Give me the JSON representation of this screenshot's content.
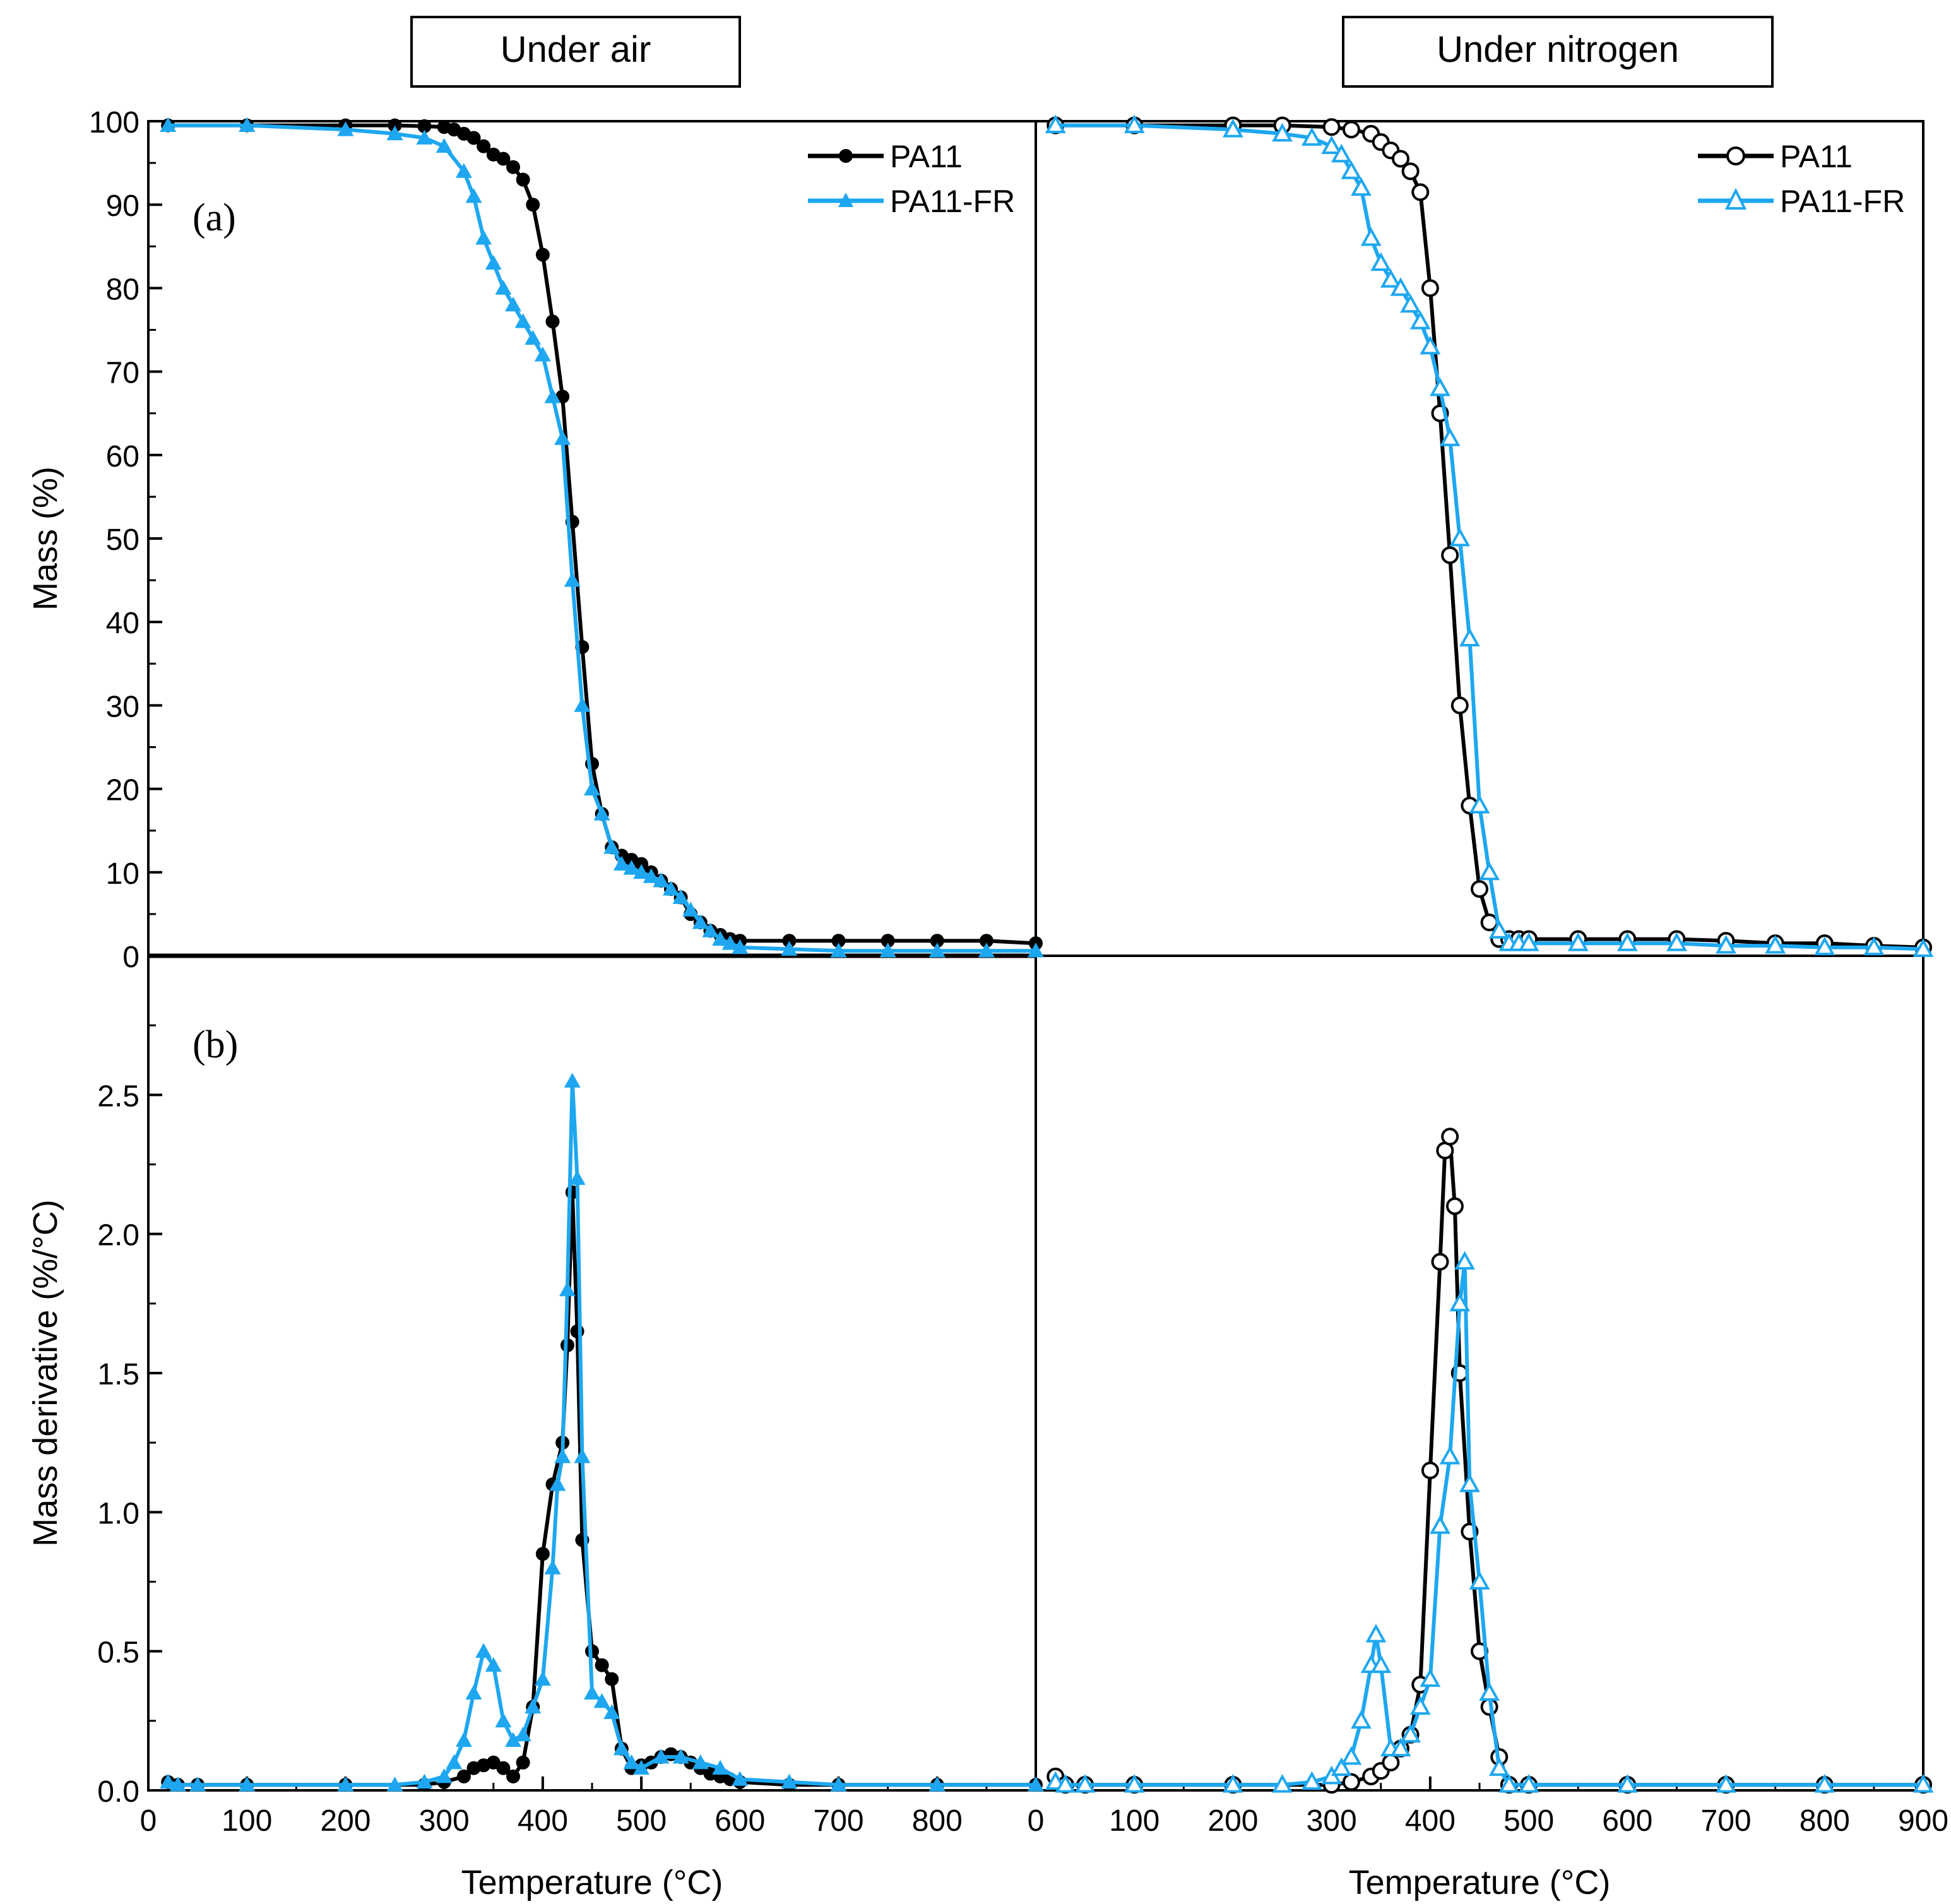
{
  "figure": {
    "headers": {
      "air": "Under air",
      "nitrogen": "Under nitrogen"
    },
    "panel_labels": {
      "a": "(a)",
      "b": "(b)"
    },
    "ylabel_top": "Mass (%)",
    "ylabel_bottom": "Mass derivative (%/°C)",
    "xlabel": "Temperature (°C)",
    "legend": {
      "pa11": "PA11",
      "pa11fr": "PA11-FR"
    }
  },
  "colors": {
    "pa11": "#000000",
    "pa11fr": "#1ea7f0",
    "axis": "#000000"
  },
  "chart_data": [
    {
      "id": "air_mass",
      "type": "line",
      "title": "Under air",
      "xlabel": "",
      "ylabel": "Mass (%)",
      "xlim": [
        0,
        900
      ],
      "ylim": [
        0,
        100
      ],
      "yticks": [
        0,
        10,
        20,
        30,
        40,
        50,
        60,
        70,
        80,
        90,
        100
      ],
      "legend": "top-right",
      "series": [
        {
          "name": "PA11",
          "marker": "filled-circle",
          "x": [
            20,
            100,
            200,
            250,
            280,
            300,
            310,
            320,
            330,
            340,
            350,
            360,
            370,
            380,
            390,
            400,
            410,
            420,
            430,
            440,
            450,
            460,
            470,
            480,
            490,
            500,
            510,
            520,
            530,
            540,
            550,
            560,
            570,
            580,
            590,
            600,
            650,
            700,
            750,
            800,
            850,
            900
          ],
          "y": [
            99.5,
            99.5,
            99.5,
            99.5,
            99.4,
            99.3,
            99,
            98.5,
            98,
            97,
            96,
            95.5,
            94.5,
            93,
            90,
            84,
            76,
            67,
            52,
            37,
            23,
            17,
            13,
            12,
            11.5,
            11,
            10,
            9,
            8,
            7,
            5,
            4,
            3,
            2.5,
            2,
            1.8,
            1.8,
            1.8,
            1.8,
            1.8,
            1.8,
            1.5
          ]
        },
        {
          "name": "PA11-FR",
          "marker": "filled-triangle",
          "x": [
            20,
            100,
            200,
            250,
            280,
            300,
            320,
            330,
            340,
            350,
            360,
            370,
            380,
            390,
            400,
            410,
            420,
            430,
            440,
            450,
            460,
            470,
            480,
            490,
            500,
            510,
            520,
            530,
            540,
            550,
            560,
            570,
            580,
            590,
            600,
            650,
            700,
            750,
            800,
            850,
            900
          ],
          "y": [
            99.5,
            99.5,
            99,
            98.5,
            98,
            97,
            94,
            91,
            86,
            83,
            80,
            78,
            76,
            74,
            72,
            67,
            62,
            45,
            30,
            20,
            17,
            13,
            11,
            10.5,
            10,
            9.5,
            9,
            8,
            7,
            5.5,
            4,
            3,
            2,
            1.5,
            1,
            0.8,
            0.6,
            0.6,
            0.6,
            0.6,
            0.6
          ]
        }
      ]
    },
    {
      "id": "nitrogen_mass",
      "type": "line",
      "title": "Under nitrogen",
      "xlabel": "",
      "ylabel": "",
      "xlim": [
        0,
        900
      ],
      "ylim": [
        0,
        100
      ],
      "legend": "top-right",
      "series": [
        {
          "name": "PA11",
          "marker": "open-circle",
          "x": [
            20,
            100,
            200,
            250,
            300,
            320,
            340,
            350,
            360,
            370,
            380,
            390,
            400,
            410,
            420,
            430,
            440,
            450,
            460,
            470,
            480,
            490,
            500,
            550,
            600,
            650,
            700,
            750,
            800,
            850,
            900
          ],
          "y": [
            99.5,
            99.5,
            99.5,
            99.5,
            99.3,
            99,
            98.5,
            97.5,
            96.5,
            95.5,
            94,
            91.5,
            80,
            65,
            48,
            30,
            18,
            8,
            4,
            2,
            2,
            2,
            2,
            2,
            2,
            2,
            1.8,
            1.5,
            1.5,
            1.2,
            1
          ]
        },
        {
          "name": "PA11-FR",
          "marker": "open-triangle",
          "x": [
            20,
            100,
            200,
            250,
            280,
            300,
            310,
            320,
            330,
            340,
            350,
            360,
            370,
            380,
            390,
            400,
            410,
            420,
            430,
            440,
            450,
            460,
            470,
            480,
            490,
            500,
            550,
            600,
            650,
            700,
            750,
            800,
            850,
            900
          ],
          "y": [
            99.5,
            99.5,
            99,
            98.5,
            98,
            97,
            96,
            94,
            92,
            86,
            83,
            81,
            80,
            78,
            76,
            73,
            68,
            62,
            50,
            38,
            18,
            10,
            3,
            1.5,
            1.5,
            1.5,
            1.5,
            1.5,
            1.5,
            1.2,
            1.2,
            1,
            1,
            0.8
          ]
        }
      ]
    },
    {
      "id": "air_derivative",
      "type": "line",
      "title": "",
      "xlabel": "Temperature (°C)",
      "ylabel": "Mass derivative (%/°C)",
      "xlim": [
        0,
        900
      ],
      "ylim": [
        0,
        3.0
      ],
      "xticks": [
        0,
        100,
        200,
        300,
        400,
        500,
        600,
        700,
        800
      ],
      "yticks": [
        0.0,
        0.5,
        1.0,
        1.5,
        2.0,
        2.5
      ],
      "series": [
        {
          "name": "PA11",
          "marker": "filled-circle",
          "x": [
            20,
            30,
            50,
            100,
            200,
            280,
            300,
            320,
            330,
            340,
            350,
            360,
            370,
            380,
            390,
            400,
            410,
            420,
            425,
            430,
            435,
            440,
            450,
            460,
            470,
            480,
            490,
            500,
            510,
            520,
            530,
            540,
            550,
            560,
            570,
            580,
            590,
            600,
            650,
            700,
            800,
            900
          ],
          "y": [
            0.03,
            0.02,
            0.02,
            0.02,
            0.02,
            0.02,
            0.03,
            0.05,
            0.08,
            0.09,
            0.1,
            0.08,
            0.05,
            0.1,
            0.3,
            0.85,
            1.1,
            1.25,
            1.6,
            2.15,
            1.65,
            0.9,
            0.5,
            0.45,
            0.4,
            0.15,
            0.08,
            0.09,
            0.1,
            0.12,
            0.13,
            0.12,
            0.1,
            0.08,
            0.06,
            0.05,
            0.04,
            0.03,
            0.02,
            0.02,
            0.02,
            0.02
          ]
        },
        {
          "name": "PA11-FR",
          "marker": "filled-triangle",
          "x": [
            20,
            30,
            50,
            100,
            200,
            250,
            280,
            300,
            310,
            320,
            330,
            340,
            350,
            360,
            370,
            380,
            390,
            400,
            410,
            415,
            420,
            425,
            430,
            435,
            440,
            450,
            460,
            470,
            480,
            490,
            500,
            520,
            540,
            560,
            580,
            600,
            650,
            700,
            800,
            900
          ],
          "y": [
            0.03,
            0.02,
            0.02,
            0.02,
            0.02,
            0.02,
            0.03,
            0.05,
            0.1,
            0.18,
            0.35,
            0.5,
            0.45,
            0.25,
            0.18,
            0.2,
            0.3,
            0.4,
            0.8,
            1.1,
            1.2,
            1.8,
            2.55,
            2.2,
            1.2,
            0.35,
            0.32,
            0.28,
            0.15,
            0.1,
            0.08,
            0.12,
            0.12,
            0.1,
            0.08,
            0.04,
            0.03,
            0.02,
            0.02,
            0.02
          ]
        }
      ]
    },
    {
      "id": "nitrogen_derivative",
      "type": "line",
      "title": "",
      "xlabel": "Temperature (°C)",
      "ylabel": "",
      "xlim": [
        0,
        900
      ],
      "ylim": [
        0,
        3.0
      ],
      "xticks": [
        0,
        100,
        200,
        300,
        400,
        500,
        600,
        700,
        800,
        900
      ],
      "series": [
        {
          "name": "PA11",
          "marker": "open-circle",
          "x": [
            20,
            30,
            50,
            100,
            200,
            300,
            320,
            340,
            350,
            360,
            370,
            380,
            390,
            400,
            410,
            415,
            420,
            425,
            430,
            440,
            450,
            460,
            470,
            480,
            500,
            600,
            700,
            800,
            900
          ],
          "y": [
            0.05,
            0.02,
            0.02,
            0.02,
            0.02,
            0.02,
            0.03,
            0.05,
            0.07,
            0.1,
            0.15,
            0.2,
            0.38,
            1.15,
            1.9,
            2.3,
            2.35,
            2.1,
            1.5,
            0.93,
            0.5,
            0.3,
            0.12,
            0.02,
            0.02,
            0.02,
            0.02,
            0.02,
            0.02
          ]
        },
        {
          "name": "PA11-FR",
          "marker": "open-triangle",
          "x": [
            20,
            30,
            50,
            100,
            200,
            250,
            280,
            300,
            310,
            320,
            330,
            340,
            345,
            350,
            360,
            370,
            380,
            390,
            400,
            410,
            420,
            430,
            435,
            440,
            450,
            460,
            470,
            480,
            500,
            600,
            700,
            800,
            900
          ],
          "y": [
            0.03,
            0.02,
            0.02,
            0.02,
            0.02,
            0.02,
            0.03,
            0.05,
            0.08,
            0.12,
            0.25,
            0.45,
            0.56,
            0.45,
            0.15,
            0.15,
            0.2,
            0.3,
            0.4,
            0.95,
            1.2,
            1.75,
            1.9,
            1.1,
            0.75,
            0.35,
            0.08,
            0.02,
            0.02,
            0.02,
            0.02,
            0.02,
            0.02
          ]
        }
      ]
    }
  ]
}
